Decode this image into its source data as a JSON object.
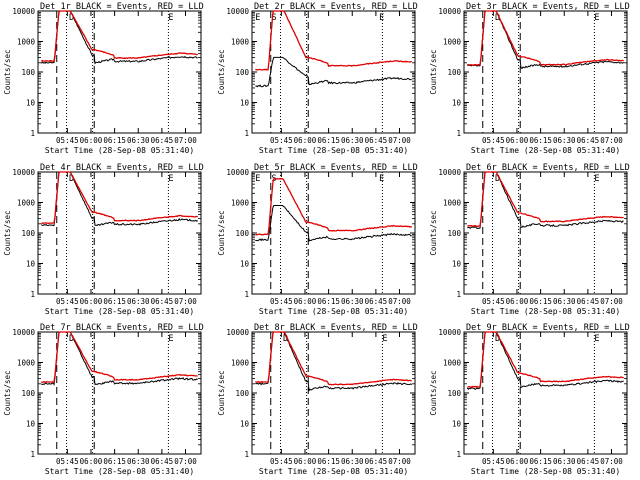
{
  "chart_data": [
    {
      "type": "line",
      "title": "Det_1r BLACK = Events, RED = LLD",
      "ylabel": "Counts/sec",
      "xlabel": "Start Time (28-Sep-08 05:31:40)",
      "xticks": [
        "05:45",
        "06:00",
        "06:15",
        "06:30",
        "06:45",
        "07:00"
      ],
      "yticks": [
        "1",
        "10",
        "100",
        "1000",
        "10000"
      ],
      "ylim": [
        1,
        10000
      ],
      "markers": [
        "D",
        "E"
      ],
      "series": [
        {
          "name": "Events",
          "color": "#000000",
          "level": 280,
          "pre": 200,
          "peak": 12000
        },
        {
          "name": "LLD",
          "color": "#e00000",
          "level": 360,
          "pre": 230,
          "peak": 12000
        }
      ]
    },
    {
      "type": "line",
      "title": "Det_2r BLACK = Events, RED = LLD",
      "ylabel": "Counts/sec",
      "xlabel": "Start Time (28-Sep-08 05:31:40)",
      "xticks": [
        "05:45",
        "06:00",
        "06:15",
        "06:30",
        "06:45",
        "07:00"
      ],
      "yticks": [
        "1",
        "10",
        "100",
        "1000",
        "10000"
      ],
      "ylim": [
        1,
        10000
      ],
      "markers": [
        "E",
        "S",
        "E"
      ],
      "series": [
        {
          "name": "Events",
          "color": "#000000",
          "level": 55,
          "pre": 35,
          "peak": 300
        },
        {
          "name": "LLD",
          "color": "#e00000",
          "level": 200,
          "pre": 120,
          "peak": 12000
        }
      ]
    },
    {
      "type": "line",
      "title": "Det_3r BLACK = Events, RED = LLD",
      "ylabel": "Counts/sec",
      "xlabel": "Start Time (28-Sep-08 05:31:40)",
      "xticks": [
        "05:45",
        "06:00",
        "06:15",
        "06:30",
        "06:45",
        "07:00"
      ],
      "yticks": [
        "1",
        "10",
        "100",
        "1000",
        "10000"
      ],
      "ylim": [
        1,
        10000
      ],
      "markers": [
        "D",
        "E"
      ],
      "series": [
        {
          "name": "Events",
          "color": "#000000",
          "level": 190,
          "pre": 160,
          "peak": 12000
        },
        {
          "name": "LLD",
          "color": "#e00000",
          "level": 220,
          "pre": 170,
          "peak": 12000
        }
      ]
    },
    {
      "type": "line",
      "title": "Det_4r BLACK = Events, RED = LLD",
      "ylabel": "Counts/sec",
      "xlabel": "Start Time (28-Sep-08 05:31:40)",
      "xticks": [
        "05:45",
        "06:00",
        "06:15",
        "06:30",
        "06:45",
        "07:00"
      ],
      "yticks": [
        "1",
        "10",
        "100",
        "1000",
        "10000"
      ],
      "ylim": [
        1,
        10000
      ],
      "markers": [
        "D",
        "E"
      ],
      "series": [
        {
          "name": "Events",
          "color": "#000000",
          "level": 240,
          "pre": 180,
          "peak": 12000
        },
        {
          "name": "LLD",
          "color": "#e00000",
          "level": 320,
          "pre": 210,
          "peak": 12000
        }
      ]
    },
    {
      "type": "line",
      "title": "Det_5r BLACK = Events, RED = LLD",
      "ylabel": "Counts/sec",
      "xlabel": "Start Time (28-Sep-08 05:31:40)",
      "xticks": [
        "05:45",
        "06:00",
        "06:15",
        "06:30",
        "06:45",
        "07:00"
      ],
      "yticks": [
        "1",
        "10",
        "100",
        "1000",
        "10000"
      ],
      "ylim": [
        1,
        10000
      ],
      "markers": [
        "E",
        "S",
        "E"
      ],
      "series": [
        {
          "name": "Events",
          "color": "#000000",
          "level": 80,
          "pre": 60,
          "peak": 800
        },
        {
          "name": "LLD",
          "color": "#e00000",
          "level": 150,
          "pre": 90,
          "peak": 6000
        }
      ]
    },
    {
      "type": "line",
      "title": "Det_6r BLACK = Events, RED = LLD",
      "ylabel": "Counts/sec",
      "xlabel": "Start Time (28-Sep-08 05:31:40)",
      "xticks": [
        "05:45",
        "06:00",
        "06:15",
        "06:30",
        "06:45",
        "07:00"
      ],
      "yticks": [
        "1",
        "10",
        "100",
        "1000",
        "10000"
      ],
      "ylim": [
        1,
        10000
      ],
      "markers": [
        "D",
        "E"
      ],
      "series": [
        {
          "name": "Events",
          "color": "#000000",
          "level": 220,
          "pre": 150,
          "peak": 12000
        },
        {
          "name": "LLD",
          "color": "#e00000",
          "level": 300,
          "pre": 170,
          "peak": 12000
        }
      ]
    },
    {
      "type": "line",
      "title": "Det_7r BLACK = Events, RED = LLD",
      "ylabel": "Counts/sec",
      "xlabel": "Start Time (28-Sep-08 05:31:40)",
      "xticks": [
        "05:45",
        "06:00",
        "06:15",
        "06:30",
        "06:45",
        "07:00"
      ],
      "yticks": [
        "1",
        "10",
        "100",
        "1000",
        "10000"
      ],
      "ylim": [
        1,
        10000
      ],
      "markers": [
        "D",
        "E"
      ],
      "series": [
        {
          "name": "Events",
          "color": "#000000",
          "level": 260,
          "pre": 200,
          "peak": 12000
        },
        {
          "name": "LLD",
          "color": "#e00000",
          "level": 340,
          "pre": 230,
          "peak": 12000
        }
      ]
    },
    {
      "type": "line",
      "title": "Det_8r BLACK = Events, RED = LLD",
      "ylabel": "Counts/sec",
      "xlabel": "Start Time (28-Sep-08 05:31:40)",
      "xticks": [
        "05:45",
        "06:00",
        "06:15",
        "06:30",
        "06:45",
        "07:00"
      ],
      "yticks": [
        "1",
        "10",
        "100",
        "1000",
        "10000"
      ],
      "ylim": [
        1,
        10000
      ],
      "markers": [
        "D",
        "E"
      ],
      "series": [
        {
          "name": "Events",
          "color": "#000000",
          "level": 180,
          "pre": 200,
          "peak": 12000
        },
        {
          "name": "LLD",
          "color": "#e00000",
          "level": 240,
          "pre": 230,
          "peak": 12000
        }
      ]
    },
    {
      "type": "line",
      "title": "Det_9r BLACK = Events, RED = LLD",
      "ylabel": "Counts/sec",
      "xlabel": "Start Time (28-Sep-08 05:31:40)",
      "xticks": [
        "05:45",
        "06:00",
        "06:15",
        "06:30",
        "06:45",
        "07:00"
      ],
      "yticks": [
        "1",
        "10",
        "100",
        "1000",
        "10000"
      ],
      "ylim": [
        1,
        10000
      ],
      "markers": [
        "D",
        "E"
      ],
      "series": [
        {
          "name": "Events",
          "color": "#000000",
          "level": 220,
          "pre": 140,
          "peak": 12000
        },
        {
          "name": "LLD",
          "color": "#e00000",
          "level": 300,
          "pre": 160,
          "peak": 12000
        }
      ]
    }
  ]
}
